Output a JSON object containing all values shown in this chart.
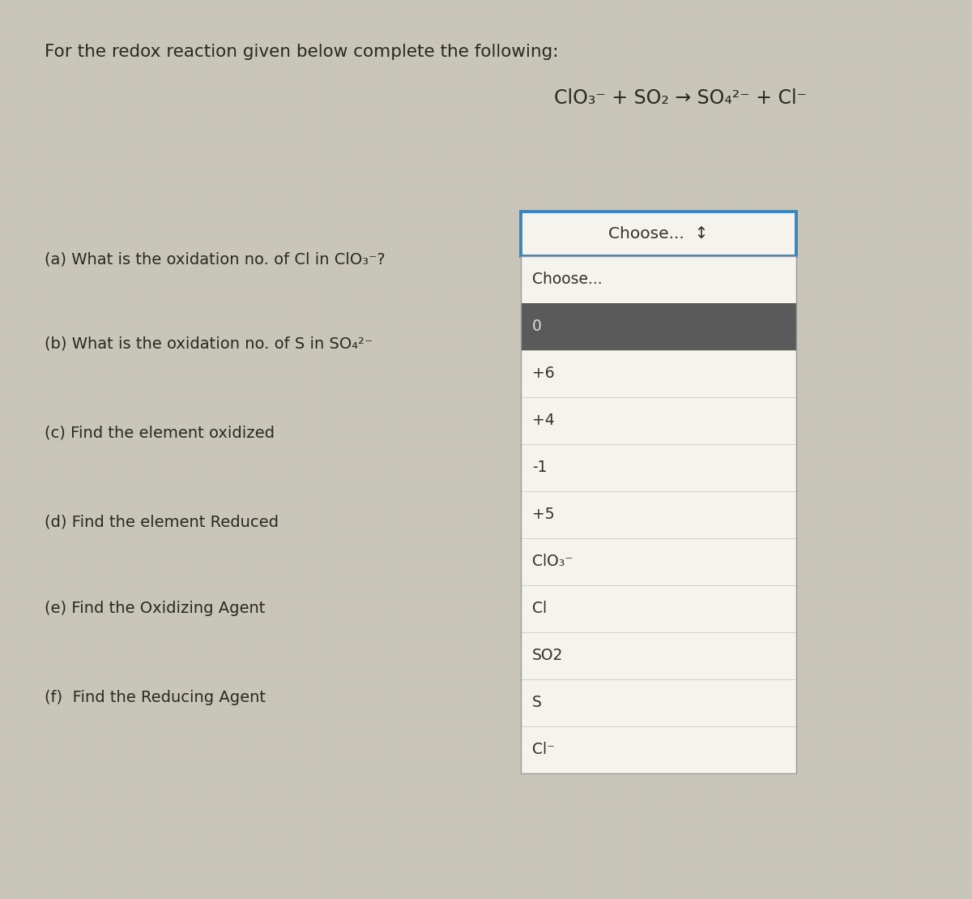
{
  "bg_color": "#c9c5b9",
  "title_text": "For the redox reaction given below complete the following:",
  "questions": [
    "(a) What is the oxidation no. of Cl in ClO₃⁻?",
    "(b) What is the oxidation no. of S in SO₄²⁻",
    "(c) Find the element oxidized",
    "(d) Find the element Reduced",
    "(e) Find the Oxidizing Agent",
    "(f)  Find the Reducing Agent"
  ],
  "dropdown_label_a": "Choose...  ↕",
  "dropdown_label_b": "Choose...",
  "dropdown_items": [
    "0",
    "+6",
    "+4",
    "-1",
    "+5",
    "ClO₃⁻",
    "Cl",
    "SO2",
    "S",
    "Cl⁻"
  ],
  "dropdown_highlighted_item": "0",
  "box_border_color": "#3a85be",
  "box_fill_color": "#f5f3ee",
  "list_fill_color": "#f0ede6",
  "highlight_color": "#5a5a5a",
  "highlight_text_color": "#e0e0e0",
  "text_color": "#2a2820",
  "question_text_color": "#2a2820",
  "dropdown_text_color": "#333028",
  "fontsize_title": 15.5,
  "fontsize_eq": 17,
  "fontsize_q": 14,
  "fontsize_dropdown": 13.5
}
